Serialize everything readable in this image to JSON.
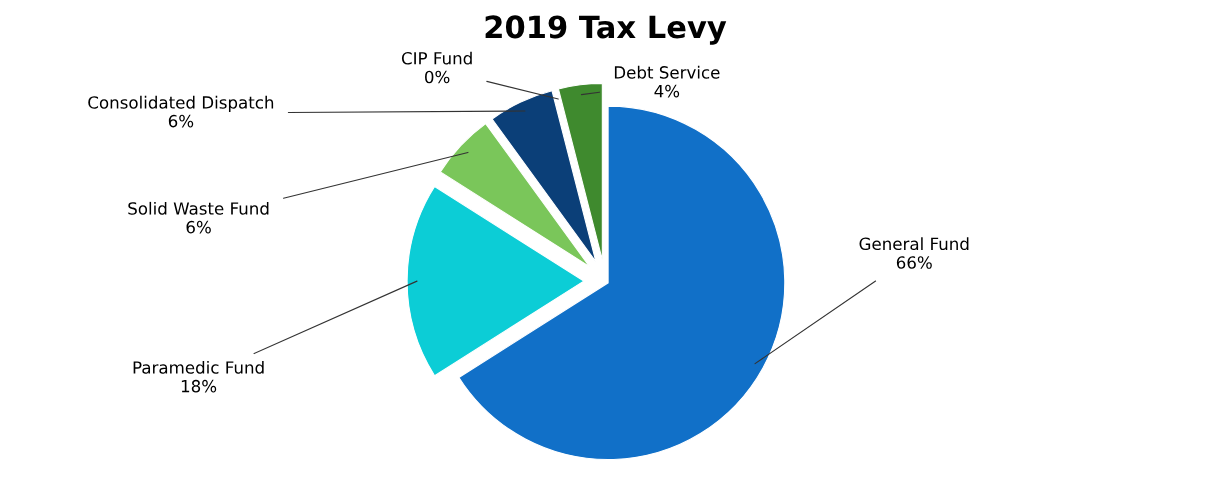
{
  "chart_data": {
    "type": "pie",
    "title": "2019 Tax Levy",
    "categories": [
      "General Fund",
      "Paramedic Fund",
      "Solid Waste Fund",
      "Consolidated Dispatch",
      "CIP Fund",
      "Debt Service"
    ],
    "values": [
      66,
      18,
      6,
      6,
      0,
      4
    ],
    "colors": [
      "#1170c8",
      "#0ccdd6",
      "#7ac65a",
      "#0b3f78",
      "#1d5a7a",
      "#3f8a2e"
    ],
    "value_labels": [
      "66%",
      "18%",
      "6%",
      "6%",
      "0%",
      "4%"
    ],
    "legend": false
  }
}
